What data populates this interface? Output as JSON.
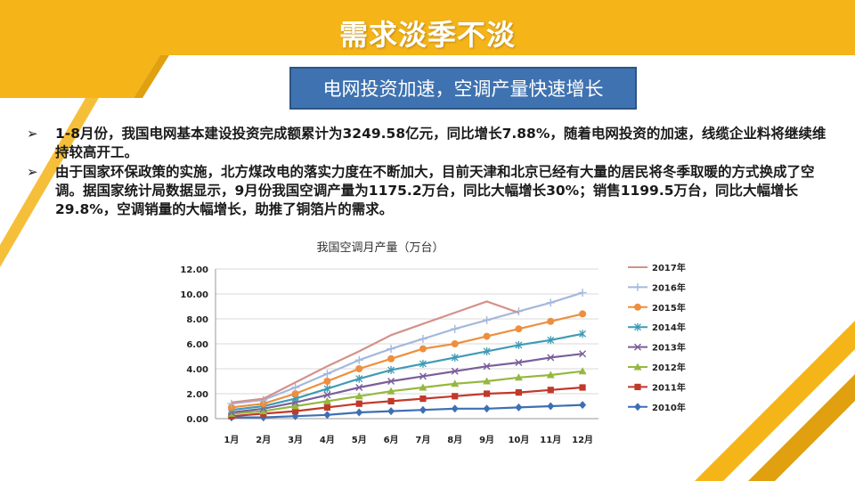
{
  "page": {
    "title": "需求淡季不淡",
    "subtitle": "电网投资加速，空调产量快速增长",
    "bullets": [
      {
        "mark": "➢",
        "text": " 1-8月份，我国电网基本建设投资完成额累计为3249.58亿元，同比增长7.88%，随着电网投资的加速，线缆企业料将继续维持较高开工。"
      },
      {
        "mark": "➢",
        "text": "由于国家环保政策的实施，北方煤改电的落实力度在不断加大，目前天津和北京已经有大量的居民将冬季取暖的方式换成了空调。据国家统计局数据显示，9月份我国空调产量为1175.2万台，同比大幅增长30%；销售1199.5万台，同比大幅增长29.8%，空调销量的大幅增长，助推了铜箔片的需求。"
      }
    ]
  },
  "colors": {
    "banner": "#f5b418",
    "banner_dark": "#e0a010",
    "subtitle_bg": "#3f72b0"
  },
  "chart_data": {
    "type": "line",
    "title": "我国空调月产量（万台）",
    "categories": [
      "1月",
      "2月",
      "3月",
      "4月",
      "5月",
      "6月",
      "7月",
      "8月",
      "9月",
      "10月",
      "11月",
      "12月"
    ],
    "ylim": [
      0,
      12
    ],
    "yticks": [
      "0.00",
      "2.00",
      "4.00",
      "6.00",
      "8.00",
      "10.00",
      "12.00"
    ],
    "grid": true,
    "legend_position": "right",
    "series": [
      {
        "name": "2017年",
        "color": "#d4918b",
        "marker": "none",
        "values": [
          1.3,
          1.6,
          2.9,
          4.2,
          5.4,
          6.7,
          7.6,
          8.5,
          9.4,
          8.5,
          null,
          null
        ]
      },
      {
        "name": "2016年",
        "color": "#a4b8dc",
        "marker": "plus",
        "values": [
          1.2,
          1.5,
          2.5,
          3.6,
          4.7,
          5.6,
          6.4,
          7.2,
          7.9,
          8.6,
          9.3,
          10.1
        ]
      },
      {
        "name": "2015年",
        "color": "#ed8f3e",
        "marker": "circle",
        "values": [
          0.9,
          1.2,
          2.0,
          3.0,
          4.0,
          4.8,
          5.6,
          6.0,
          6.6,
          7.2,
          7.8,
          8.4
        ]
      },
      {
        "name": "2014年",
        "color": "#3e9bb5",
        "marker": "star",
        "values": [
          0.7,
          1.0,
          1.6,
          2.4,
          3.2,
          3.9,
          4.4,
          4.9,
          5.4,
          5.9,
          6.3,
          6.8
        ]
      },
      {
        "name": "2013年",
        "color": "#7a5e9a",
        "marker": "x",
        "values": [
          0.5,
          0.8,
          1.3,
          1.9,
          2.5,
          3.0,
          3.4,
          3.8,
          4.2,
          4.5,
          4.9,
          5.2
        ]
      },
      {
        "name": "2012年",
        "color": "#95b83e",
        "marker": "triangle",
        "values": [
          0.4,
          0.6,
          1.0,
          1.4,
          1.8,
          2.2,
          2.5,
          2.8,
          3.0,
          3.3,
          3.5,
          3.8
        ]
      },
      {
        "name": "2011年",
        "color": "#c0392b",
        "marker": "square",
        "values": [
          0.2,
          0.4,
          0.6,
          0.9,
          1.2,
          1.4,
          1.6,
          1.8,
          2.0,
          2.1,
          2.3,
          2.5
        ]
      },
      {
        "name": "2010年",
        "color": "#3d6fb5",
        "marker": "diamond",
        "values": [
          0.1,
          0.1,
          0.2,
          0.3,
          0.5,
          0.6,
          0.7,
          0.8,
          0.8,
          0.9,
          1.0,
          1.1
        ]
      }
    ]
  }
}
